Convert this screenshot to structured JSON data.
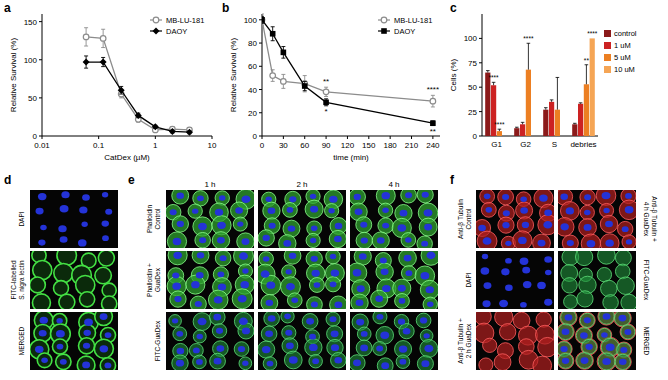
{
  "chart_data": [
    {
      "type": "line",
      "log": "x",
      "xlabel": "CatDex (µM)",
      "ylabel": "Relative Survival (%)",
      "xlim": [
        0.01,
        10
      ],
      "xticks": [
        0.01,
        0.1,
        1,
        10
      ],
      "ylim": [
        0,
        160
      ],
      "yticks": [
        0,
        50,
        100,
        150
      ],
      "legend": "top-right",
      "x": [
        0.06,
        0.12,
        0.25,
        0.5,
        1,
        2,
        4
      ],
      "series": [
        {
          "name": "MB-LU-181",
          "color": "#8c8c8c",
          "marker": "open-circle",
          "values": [
            130,
            128,
            55,
            22,
            8,
            9,
            8
          ],
          "errors": [
            12,
            12,
            5,
            4,
            3,
            3,
            3
          ]
        },
        {
          "name": "DAOY",
          "color": "#000000",
          "marker": "diamond",
          "values": [
            97,
            97,
            60,
            27,
            12,
            6,
            5
          ],
          "errors": [
            8,
            6,
            5,
            3,
            2,
            2,
            2
          ]
        }
      ]
    },
    {
      "type": "line",
      "xlabel": "time (min)",
      "ylabel": "Relative Survival (%)",
      "xlim": [
        0,
        250
      ],
      "xticks": [
        0,
        30,
        60,
        90,
        120,
        150,
        180,
        210,
        240
      ],
      "ylim": [
        0,
        105
      ],
      "yticks": [
        0,
        20,
        40,
        60,
        80,
        100
      ],
      "legend": "top-right",
      "x": [
        0,
        15,
        30,
        60,
        90,
        240
      ],
      "series": [
        {
          "name": "MB-LU-181",
          "color": "#8c8c8c",
          "marker": "open-circle",
          "values": [
            100,
            52,
            47,
            45,
            38,
            30
          ],
          "errors": [
            5,
            5,
            6,
            7,
            4,
            5
          ]
        },
        {
          "name": "DAOY",
          "color": "#000000",
          "marker": "square",
          "values": [
            100,
            88,
            72,
            43,
            29,
            11
          ],
          "errors": [
            3,
            6,
            5,
            4,
            3,
            2
          ]
        }
      ],
      "annotations": [
        {
          "text": "**",
          "x": 90,
          "y": 45
        },
        {
          "text": "*",
          "x": 90,
          "y": 19
        },
        {
          "text": "****",
          "x": 240,
          "y": 38
        },
        {
          "text": "**",
          "x": 240,
          "y": 2
        }
      ]
    },
    {
      "type": "bar",
      "ylabel": "Cells (%)",
      "ylim": [
        0,
        125
      ],
      "yticks": [
        0,
        25,
        50,
        75,
        100
      ],
      "legend": "right",
      "categories": [
        "G1",
        "G2",
        "S",
        "debries"
      ],
      "series": [
        {
          "name": "control",
          "color": "#8b1a1a",
          "values": [
            65,
            8,
            27,
            12
          ],
          "errors": [
            2,
            1,
            2,
            1
          ]
        },
        {
          "name": "1 uM",
          "color": "#cc2222",
          "values": [
            52,
            12,
            35,
            33
          ],
          "errors": [
            3,
            2,
            2,
            1
          ]
        },
        {
          "name": "5 uM",
          "color": "#ec7f22",
          "values": [
            5,
            68,
            27,
            53
          ],
          "errors": [
            2,
            27,
            33,
            20
          ]
        },
        {
          "name": "10 uM",
          "color": "#f5a555",
          "values": [
            null,
            null,
            null,
            100
          ],
          "errors": [
            null,
            null,
            null,
            null
          ]
        }
      ],
      "annotations": [
        {
          "text": "****",
          "category": "G1",
          "series": "1 uM"
        },
        {
          "text": "****",
          "category": "G1",
          "series": "5 uM"
        },
        {
          "text": "****",
          "category": "G2",
          "series": "5 uM"
        },
        {
          "text": "**",
          "category": "debries",
          "series": "5 uM"
        },
        {
          "text": "****",
          "category": "debries",
          "series": "10 uM"
        }
      ]
    }
  ],
  "panel_labels": [
    "a",
    "b",
    "c",
    "d",
    "e",
    "f"
  ],
  "panel_d": {
    "rows": [
      [
        "DAPI"
      ],
      [
        "FITC-labelled",
        "S. nigra lectin"
      ],
      [
        "MERGED"
      ]
    ]
  },
  "panel_e": {
    "columns": [
      "1 h",
      "2 h",
      "4 h"
    ],
    "rows": [
      [
        "Phalloidin",
        "Control"
      ],
      [
        "Phalloidin +",
        "GuaDex"
      ],
      [
        "FITC-GuaDex"
      ]
    ]
  },
  "panel_f": {
    "left_labels": [
      [
        "Anti-β Tubulin",
        "Control"
      ],
      [
        "DAPI"
      ],
      [
        "Anti-β Tubulin +",
        "2 h GuaDex"
      ]
    ],
    "right_labels": [
      [
        "Anti-β Tubulin +",
        "4 h GuaDex"
      ],
      [
        "FITC-GuaDex"
      ],
      [
        "MERGED"
      ]
    ]
  }
}
